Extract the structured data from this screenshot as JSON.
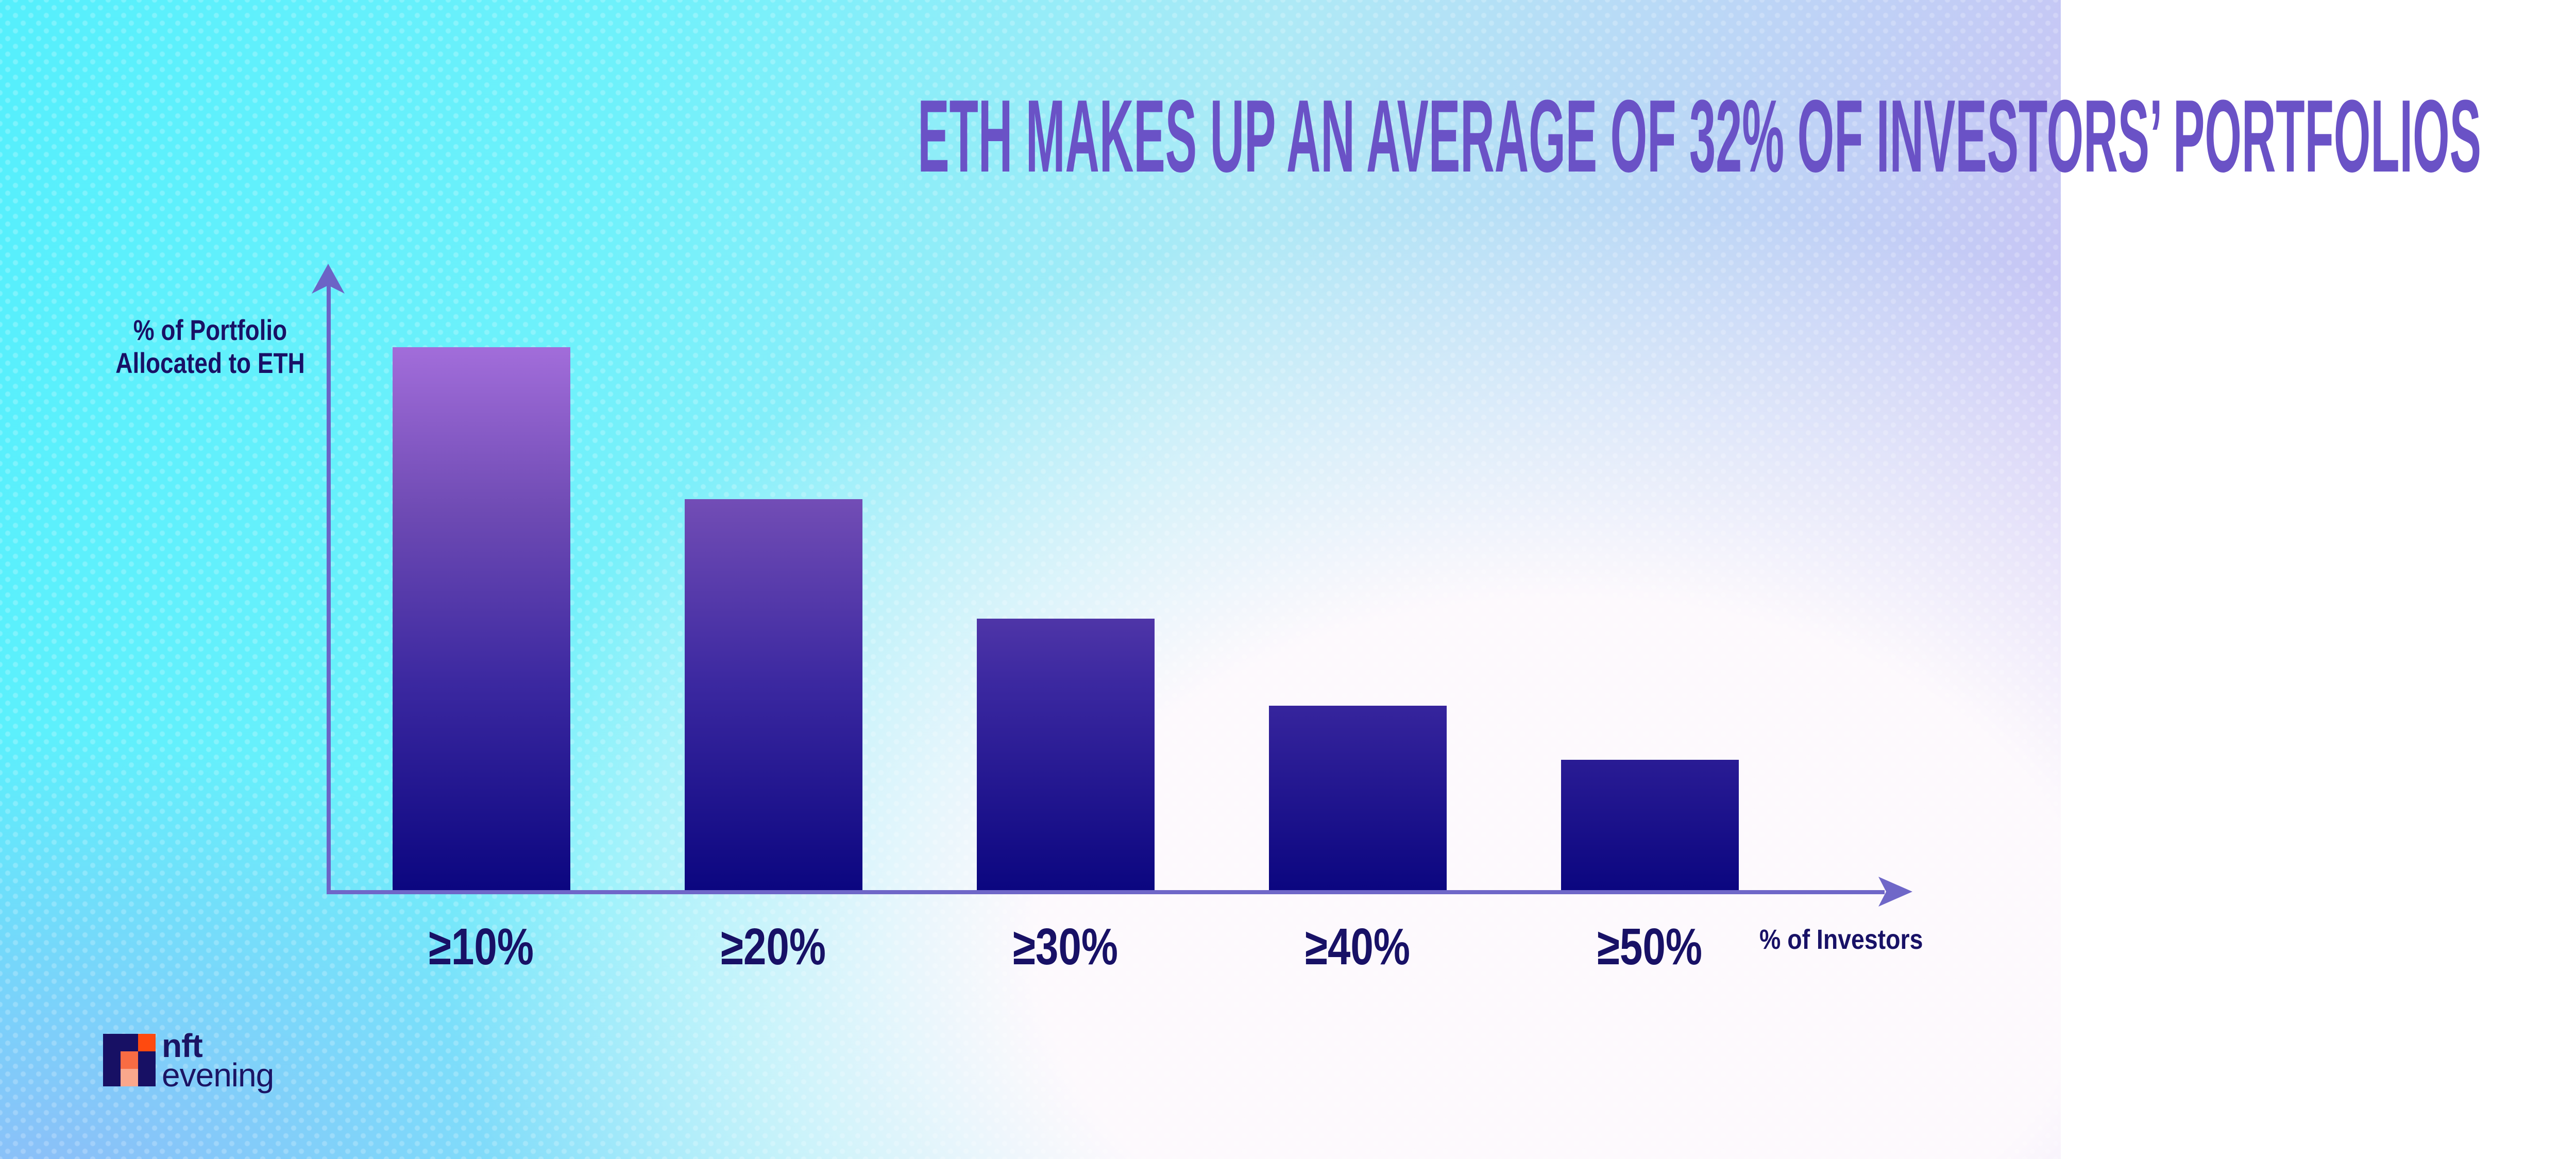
{
  "title": {
    "text": "ETH MAKES UP AN AVERAGE OF 32% OF INVESTORS’ PORTFOLIOS"
  },
  "chart_data": {
    "type": "bar",
    "title": "ETH MAKES UP AN AVERAGE OF 32% OF INVESTORS’ PORTFOLIOS",
    "categories": [
      "≥10%",
      "≥20%",
      "≥30%",
      "≥40%",
      "≥50%"
    ],
    "values": [
      100,
      72,
      50,
      34,
      24
    ],
    "values_unit": "relative bar height as % of tallest bar (chart shows no numeric y-axis)",
    "xlabel": "% of Investors",
    "ylabel": "% of Portfolio Allocated to ETH",
    "ylabel_lines": [
      "% of Portfolio",
      "Allocated to ETH"
    ],
    "grid": false,
    "legend": false,
    "bar_gradient_top": "#A26DDA",
    "bar_gradient_bottom": "#0B0680"
  },
  "axis": {
    "x_label": "% of Investors",
    "y_label_line1": "% of Portfolio",
    "y_label_line2": "Allocated to ETH",
    "axis_color": "#6C63C6"
  },
  "logo": {
    "word1": "nft",
    "word2": "evening",
    "square_navy": "#171064",
    "square_orange": "#FF4A0F",
    "square_mid_orange": "#F96C43",
    "square_salmon": "#FAA78C",
    "text_color": "#1B1464"
  },
  "colors": {
    "title_purple": "#6A52C6",
    "label_navy": "#181166",
    "bg_top_left_cyan": "#55EFFC",
    "bg_top_right_lavender": "#CDBEF5",
    "bg_bottom_left_blue": "#8FBBF8",
    "bg_bottom_right_white": "#FDF9FD"
  }
}
